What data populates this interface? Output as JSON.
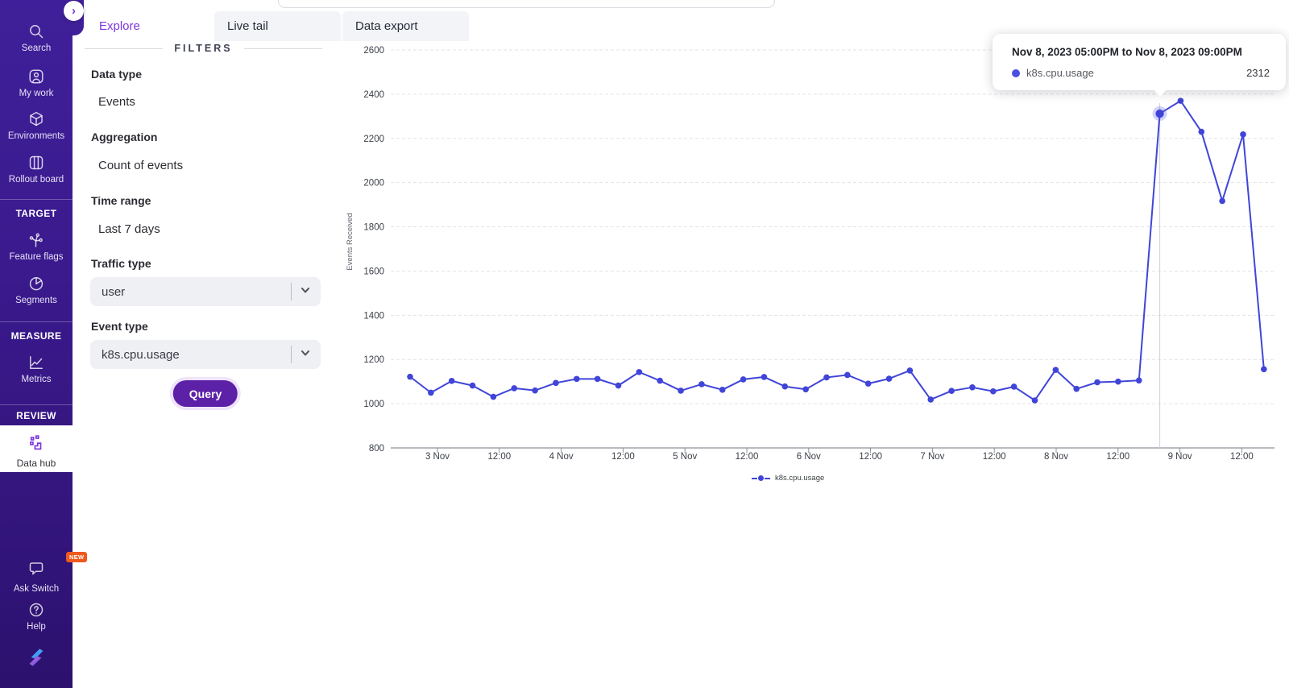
{
  "sidebar": {
    "primary": [
      {
        "label": "Search"
      },
      {
        "label": "My work"
      },
      {
        "label": "Environments"
      },
      {
        "label": "Rollout board"
      }
    ],
    "groups": [
      {
        "header": "TARGET"
      },
      {
        "header": "MEASURE"
      },
      {
        "header": "REVIEW"
      }
    ],
    "items": {
      "feature_flags": "Feature flags",
      "segments": "Segments",
      "metrics": "Metrics",
      "data_hub": "Data hub"
    },
    "footer": [
      {
        "label": "Ask Switch",
        "badge": "NEW"
      },
      {
        "label": "Help"
      }
    ]
  },
  "tabs": [
    {
      "label": "Explore",
      "active": true
    },
    {
      "label": "Live tail",
      "active": false
    },
    {
      "label": "Data export",
      "active": false
    }
  ],
  "filters": {
    "heading": "FILTERS",
    "fields": [
      {
        "label": "Data type",
        "value": "Events"
      },
      {
        "label": "Aggregation",
        "value": "Count of events"
      },
      {
        "label": "Time range",
        "value": "Last 7 days"
      }
    ],
    "dropdowns": [
      {
        "label": "Traffic type",
        "value": "user"
      },
      {
        "label": "Event type",
        "value": "k8s.cpu.usage"
      }
    ],
    "query_label": "Query"
  },
  "tooltip": {
    "title": "Nov 8, 2023 05:00PM to Nov 8, 2023 09:00PM",
    "series": "k8s.cpu.usage",
    "value": "2312"
  },
  "chart_data": {
    "type": "line",
    "ylabel": "Events Received",
    "ylim": [
      800,
      2600
    ],
    "yticks": [
      2600,
      2400,
      2200,
      2000,
      1800,
      1600,
      1400,
      1200,
      1000,
      800
    ],
    "x_tick_labels": [
      "3 Nov",
      "12:00",
      "4 Nov",
      "12:00",
      "5 Nov",
      "12:00",
      "6 Nov",
      "12:00",
      "7 Nov",
      "12:00",
      "8 Nov",
      "12:00",
      "9 Nov",
      "12:00"
    ],
    "bucket_hours": 4,
    "grid": "dashed-horizontal",
    "legend_position": "bottom-center",
    "series": [
      {
        "name": "k8s.cpu.usage",
        "color": "#4045d8",
        "values": [
          1122,
          1050,
          1103,
          1082,
          1031,
          1070,
          1060,
          1094,
          1112,
          1112,
          1082,
          1143,
          1104,
          1059,
          1088,
          1063,
          1110,
          1121,
          1078,
          1065,
          1119,
          1130,
          1091,
          1113,
          1150,
          1019,
          1058,
          1074,
          1056,
          1077,
          1015,
          1153,
          1067,
          1097,
          1100,
          1105,
          2312,
          2370,
          2230,
          1917,
          2218,
          1156
        ]
      }
    ],
    "highlighted_index": 36,
    "highlighted_value": 2312,
    "highlighted_bucket": "Nov 8, 2023 05:00PM to Nov 8, 2023 09:00PM",
    "legend": "k8s.cpu.usage"
  }
}
